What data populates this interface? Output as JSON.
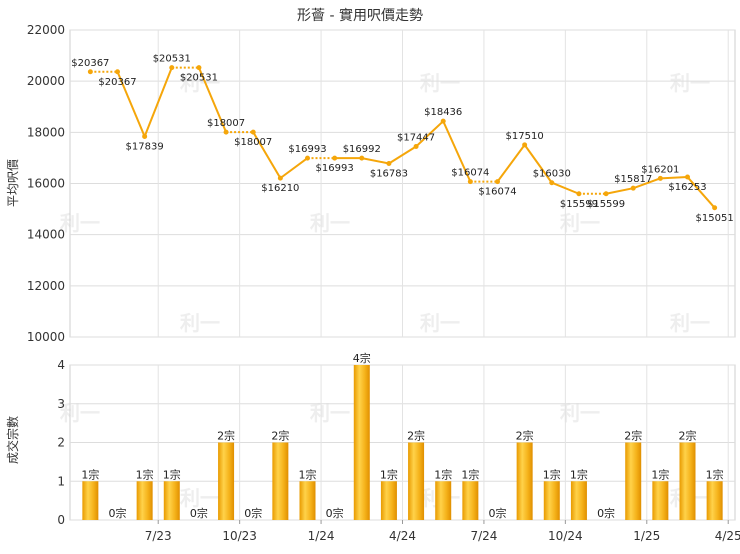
{
  "chart_data": [
    {
      "type": "line",
      "title": "形薈 - 實用呎價走勢",
      "ylabel": "平均呎價",
      "ylim": [
        10000,
        22000
      ],
      "yticks": [
        10000,
        12000,
        14000,
        16000,
        18000,
        20000,
        22000
      ],
      "grid": true,
      "line_color": "#f5a60a",
      "x_tick_labels": [
        "7/23",
        "10/23",
        "1/24",
        "4/24",
        "7/24",
        "10/24",
        "1/25",
        "4/25"
      ],
      "points": [
        {
          "x": 1,
          "y": 20367,
          "label": "$20367"
        },
        {
          "x": 2,
          "y": 20367,
          "label": "$20367"
        },
        {
          "x": 3,
          "y": 17839,
          "label": "$17839"
        },
        {
          "x": 4,
          "y": 20531,
          "label": "$20531"
        },
        {
          "x": 5,
          "y": 20531,
          "label": "$20531"
        },
        {
          "x": 6,
          "y": 18007,
          "label": "$18007"
        },
        {
          "x": 7,
          "y": 18007,
          "label": "$18007"
        },
        {
          "x": 8,
          "y": 16210,
          "label": "$16210"
        },
        {
          "x": 9,
          "y": 16993,
          "label": "$16993"
        },
        {
          "x": 10,
          "y": 16993,
          "label": "$16993"
        },
        {
          "x": 11,
          "y": 16992,
          "label": "$16992"
        },
        {
          "x": 12,
          "y": 16783,
          "label": "$16783"
        },
        {
          "x": 13,
          "y": 17447,
          "label": "$17447"
        },
        {
          "x": 14,
          "y": 18436,
          "label": "$18436"
        },
        {
          "x": 15,
          "y": 16074,
          "label": "$16074"
        },
        {
          "x": 16,
          "y": 16074,
          "label": "$16074"
        },
        {
          "x": 17,
          "y": 17510,
          "label": "$17510"
        },
        {
          "x": 18,
          "y": 16030,
          "label": "$16030"
        },
        {
          "x": 19,
          "y": 15599,
          "label": "$15599"
        },
        {
          "x": 20,
          "y": 15599,
          "label": "$15599"
        },
        {
          "x": 21,
          "y": 15817,
          "label": "$15817"
        },
        {
          "x": 22,
          "y": 16201,
          "label": "$16201"
        },
        {
          "x": 23,
          "y": 16253,
          "label": "$16253"
        },
        {
          "x": 24,
          "y": 15051,
          "label": "$15051"
        }
      ]
    },
    {
      "type": "bar",
      "ylabel": "成交宗數",
      "ylim": [
        0,
        4
      ],
      "yticks": [
        0,
        1,
        2,
        3,
        4
      ],
      "grid": true,
      "unit_suffix": "宗",
      "bar_color": "#f0a500",
      "x_tick_labels": [
        "7/23",
        "10/23",
        "1/24",
        "4/24",
        "7/24",
        "10/24",
        "1/25",
        "4/25"
      ],
      "values": [
        1,
        0,
        1,
        1,
        0,
        2,
        0,
        2,
        1,
        0,
        4,
        1,
        2,
        1,
        1,
        0,
        2,
        1,
        1,
        0,
        2,
        1,
        2,
        1
      ]
    }
  ],
  "watermark": "利一"
}
